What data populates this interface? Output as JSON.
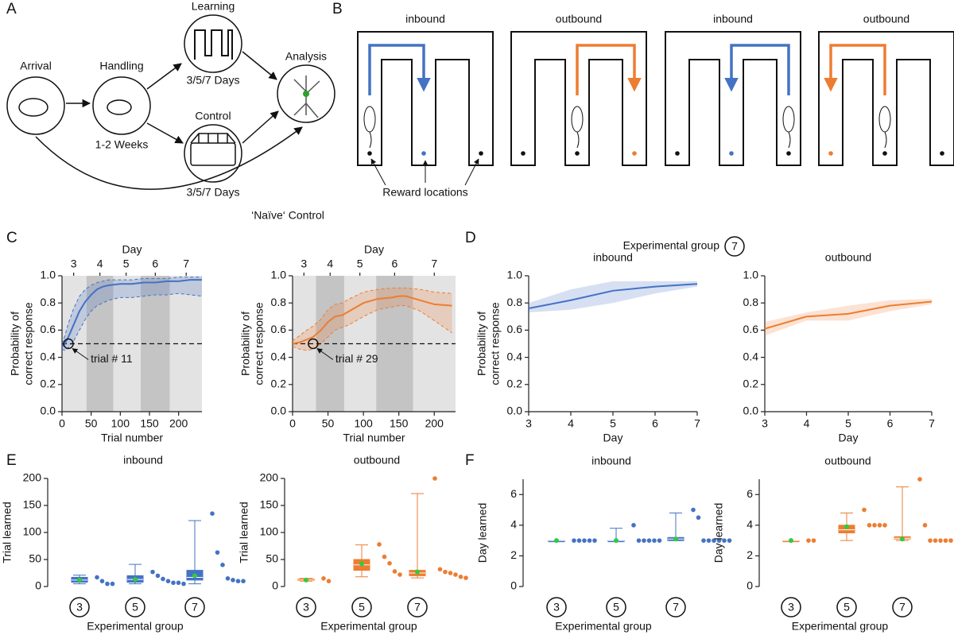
{
  "panel_labels": [
    "A",
    "B",
    "C",
    "D",
    "E",
    "F"
  ],
  "panel_a": {
    "stages": [
      "Arrival",
      "Handling",
      "Learning",
      "Control",
      "Analysis"
    ],
    "handling_duration": "1-2 Weeks",
    "learning_duration": "3/5/7 Days",
    "control_duration": "3/5/7 Days",
    "naive_control": "‘Naïve‘ Control"
  },
  "panel_b": {
    "maze_titles": [
      "inbound",
      "outbound",
      "inbound",
      "outbound"
    ],
    "reward_label": "Reward locations"
  },
  "panel_d": {
    "header": "Experimental group",
    "group": "7"
  },
  "chart_data": [
    {
      "type": "line",
      "color": "#4472c4",
      "x": [
        0,
        5,
        11,
        20,
        30,
        40,
        50,
        60,
        70,
        80,
        100,
        120,
        140,
        160,
        180,
        200,
        220,
        240
      ],
      "values": [
        0.48,
        0.5,
        0.55,
        0.64,
        0.74,
        0.81,
        0.86,
        0.9,
        0.92,
        0.93,
        0.94,
        0.94,
        0.95,
        0.95,
        0.96,
        0.96,
        0.97,
        0.97
      ],
      "upper": [
        0.5,
        0.56,
        0.65,
        0.76,
        0.85,
        0.9,
        0.93,
        0.95,
        0.96,
        0.97,
        0.97,
        0.97,
        0.98,
        0.98,
        0.98,
        0.99,
        0.99,
        0.99
      ],
      "lower": [
        0.46,
        0.45,
        0.47,
        0.52,
        0.6,
        0.68,
        0.74,
        0.78,
        0.8,
        0.82,
        0.84,
        0.84,
        0.85,
        0.86,
        0.86,
        0.87,
        0.86,
        0.85
      ],
      "xlim": [
        0,
        240
      ],
      "xticks": [
        0,
        50,
        100,
        150,
        200
      ],
      "ylim": [
        0,
        1
      ],
      "yticks": [
        {
          "value": 0,
          "label": "0.0"
        },
        {
          "value": 0.2,
          "label": "0.2"
        },
        {
          "value": 0.4,
          "label": "0.4"
        },
        {
          "value": 0.6,
          "label": "0.6"
        },
        {
          "value": 0.8,
          "label": "0.8"
        },
        {
          "value": 1,
          "label": "1.0"
        }
      ],
      "xlabel": "Trial number",
      "ylabel": [
        "Probability of",
        "correct response"
      ],
      "x2label": "Day",
      "x2ticks": [
        {
          "value": 20,
          "label": "3"
        },
        {
          "value": 65,
          "label": "4"
        },
        {
          "value": 110,
          "label": "5"
        },
        {
          "value": 160,
          "label": "6"
        },
        {
          "value": 213,
          "label": "7"
        }
      ],
      "bands": [
        {
          "from": 0,
          "to": 42,
          "color": "#e3e3e3"
        },
        {
          "from": 42,
          "to": 88,
          "color": "#c4c4c4"
        },
        {
          "from": 88,
          "to": 135,
          "color": "#e3e3e3"
        },
        {
          "from": 135,
          "to": 185,
          "color": "#c4c4c4"
        },
        {
          "from": 185,
          "to": 240,
          "color": "#e3e3e3"
        }
      ],
      "threshold": 0.5,
      "annotation": {
        "x": 11,
        "y": 0.5,
        "text": "trial # 11"
      }
    },
    {
      "type": "line",
      "color": "#ed7d31",
      "x": [
        0,
        10,
        20,
        29,
        40,
        50,
        60,
        70,
        80,
        100,
        120,
        140,
        150,
        160,
        180,
        200,
        225
      ],
      "values": [
        0.5,
        0.51,
        0.53,
        0.55,
        0.6,
        0.66,
        0.7,
        0.71,
        0.74,
        0.8,
        0.83,
        0.84,
        0.85,
        0.85,
        0.82,
        0.79,
        0.78
      ],
      "upper": [
        0.52,
        0.56,
        0.6,
        0.63,
        0.68,
        0.75,
        0.79,
        0.8,
        0.83,
        0.88,
        0.9,
        0.91,
        0.91,
        0.91,
        0.9,
        0.88,
        0.87
      ],
      "lower": [
        0.48,
        0.46,
        0.45,
        0.46,
        0.5,
        0.55,
        0.6,
        0.62,
        0.64,
        0.7,
        0.75,
        0.77,
        0.78,
        0.78,
        0.74,
        0.67,
        0.58
      ],
      "xlim": [
        0,
        230
      ],
      "xticks": [
        0,
        50,
        100,
        150,
        200
      ],
      "ylim": [
        0,
        1
      ],
      "yticks": [
        {
          "value": 0,
          "label": "0.0"
        },
        {
          "value": 0.2,
          "label": "0.2"
        },
        {
          "value": 0.4,
          "label": "0.4"
        },
        {
          "value": 0.6,
          "label": "0.6"
        },
        {
          "value": 0.8,
          "label": "0.8"
        },
        {
          "value": 1,
          "label": "1.0"
        }
      ],
      "xlabel": "Trial number",
      "ylabel": [
        "Probability of",
        "correct response"
      ],
      "x2label": "Day",
      "x2ticks": [
        {
          "value": 16,
          "label": "3"
        },
        {
          "value": 53,
          "label": "4"
        },
        {
          "value": 95,
          "label": "5"
        },
        {
          "value": 144,
          "label": "6"
        },
        {
          "value": 200,
          "label": "7"
        }
      ],
      "bands": [
        {
          "from": 0,
          "to": 33,
          "color": "#e3e3e3"
        },
        {
          "from": 33,
          "to": 73,
          "color": "#c4c4c4"
        },
        {
          "from": 73,
          "to": 118,
          "color": "#e3e3e3"
        },
        {
          "from": 118,
          "to": 170,
          "color": "#c4c4c4"
        },
        {
          "from": 170,
          "to": 230,
          "color": "#e3e3e3"
        }
      ],
      "threshold": 0.5,
      "annotation": {
        "x": 29,
        "y": 0.5,
        "text": "trial # 29"
      }
    },
    {
      "type": "line",
      "title": "inbound",
      "color": "#4472c4",
      "x": [
        3,
        4,
        5,
        6,
        7
      ],
      "values": [
        0.76,
        0.82,
        0.89,
        0.92,
        0.94
      ],
      "upper": [
        0.8,
        0.9,
        0.96,
        0.96,
        0.96
      ],
      "lower": [
        0.73,
        0.75,
        0.8,
        0.87,
        0.92
      ],
      "xlim": [
        3,
        7
      ],
      "xticks": [
        3,
        4,
        5,
        6,
        7
      ],
      "ylim": [
        0,
        1
      ],
      "yticks": [
        {
          "value": 0,
          "label": "0.0"
        },
        {
          "value": 0.2,
          "label": "0.2"
        },
        {
          "value": 0.4,
          "label": "0.4"
        },
        {
          "value": 0.6,
          "label": "0.6"
        },
        {
          "value": 0.8,
          "label": "0.8"
        },
        {
          "value": 1,
          "label": "1.0"
        }
      ],
      "xlabel": "Day",
      "ylabel": [
        "Probability of",
        "correct response"
      ]
    },
    {
      "type": "line",
      "title": "outbound",
      "color": "#ed7d31",
      "x": [
        3,
        4,
        5,
        6,
        7
      ],
      "values": [
        0.61,
        0.7,
        0.72,
        0.78,
        0.81
      ],
      "upper": [
        0.66,
        0.73,
        0.78,
        0.82,
        0.83
      ],
      "lower": [
        0.56,
        0.67,
        0.67,
        0.74,
        0.79
      ],
      "xlim": [
        3,
        7
      ],
      "xticks": [
        3,
        4,
        5,
        6,
        7
      ],
      "ylim": [
        0,
        1
      ],
      "yticks": [
        {
          "value": 0,
          "label": "0.0"
        },
        {
          "value": 0.2,
          "label": "0.2"
        },
        {
          "value": 0.4,
          "label": "0.4"
        },
        {
          "value": 0.6,
          "label": "0.6"
        },
        {
          "value": 0.8,
          "label": "0.8"
        },
        {
          "value": 1,
          "label": "1.0"
        }
      ],
      "xlabel": "Day"
    },
    {
      "type": "box",
      "title": "inbound",
      "color": "#4472c4",
      "ylim": [
        0,
        200
      ],
      "yticks": [
        0,
        50,
        100,
        150,
        200
      ],
      "ylabel": "Trial learned",
      "xlabel": "Experimental group",
      "groups": [
        "3",
        "5",
        "7"
      ],
      "boxes": [
        {
          "whislo": 5,
          "q1": 8,
          "med": 12,
          "q3": 17,
          "whishi": 21,
          "mean": 12,
          "points": [
            17,
            10,
            5,
            5
          ]
        },
        {
          "whislo": 5,
          "q1": 8,
          "med": 13,
          "q3": 20,
          "whishi": 41,
          "mean": 13,
          "points": [
            27,
            20,
            14,
            10,
            7,
            7,
            5
          ]
        },
        {
          "whislo": 5,
          "q1": 12,
          "med": 17,
          "q3": 30,
          "whishi": 122,
          "mean": 20,
          "points": [
            135,
            63,
            40,
            15,
            12,
            10,
            10
          ]
        }
      ]
    },
    {
      "type": "box",
      "title": "outbound",
      "color": "#ed7d31",
      "ylim": [
        0,
        200
      ],
      "yticks": [
        0,
        50,
        100,
        150,
        200
      ],
      "ylabel": "Trial learned",
      "xlabel": "Experimental group",
      "groups": [
        "3",
        "5",
        "7"
      ],
      "boxes": [
        {
          "whislo": 10,
          "q1": 11,
          "med": 12,
          "q3": 14,
          "whishi": 15,
          "mean": 12,
          "points": [
            15,
            10
          ]
        },
        {
          "whislo": 18,
          "q1": 30,
          "med": 40,
          "q3": 50,
          "whishi": 77,
          "mean": 42,
          "points": [
            78,
            55,
            43,
            28,
            22
          ]
        },
        {
          "whislo": 16,
          "q1": 20,
          "med": 25,
          "q3": 30,
          "whishi": 172,
          "mean": 27,
          "points": [
            200,
            32,
            27,
            25,
            22,
            18,
            16
          ]
        }
      ]
    },
    {
      "type": "box",
      "title": "inbound",
      "color": "#4472c4",
      "ylim": [
        0,
        7
      ],
      "yticks": [
        0,
        2,
        4,
        6
      ],
      "ylabel": "Day learned",
      "xlabel": "Experimental group",
      "groups": [
        "3",
        "5",
        "7"
      ],
      "boxes": [
        {
          "whislo": 3,
          "q1": 3,
          "med": 3,
          "q3": 3,
          "whishi": 3,
          "mean": 3,
          "points": [
            3,
            3,
            3,
            3,
            3
          ]
        },
        {
          "whislo": 3,
          "q1": 3,
          "med": 3,
          "q3": 3,
          "whishi": 3.8,
          "mean": 3,
          "points": [
            4,
            3,
            3,
            3,
            3,
            3
          ]
        },
        {
          "whislo": 3,
          "q1": 3,
          "med": 3.1,
          "q3": 3.2,
          "whishi": 4.8,
          "mean": 3.1,
          "points": [
            5,
            4.5,
            3,
            3,
            3,
            3,
            3,
            3
          ]
        }
      ]
    },
    {
      "type": "box",
      "title": "outbound",
      "color": "#ed7d31",
      "ylim": [
        0,
        7
      ],
      "yticks": [
        0,
        2,
        4,
        6
      ],
      "ylabel": "Day learned",
      "xlabel": "Experimental group",
      "groups": [
        "3",
        "5",
        "7"
      ],
      "boxes": [
        {
          "whislo": 3,
          "q1": 3,
          "med": 3,
          "q3": 3,
          "whishi": 3,
          "mean": 3,
          "points": [
            3,
            3
          ]
        },
        {
          "whislo": 3,
          "q1": 3.5,
          "med": 3.7,
          "q3": 4,
          "whishi": 4.8,
          "mean": 3.9,
          "points": [
            5,
            4,
            4,
            4,
            4
          ]
        },
        {
          "whislo": 3,
          "q1": 3.1,
          "med": 3.15,
          "q3": 3.25,
          "whishi": 6.5,
          "mean": 3.1,
          "points": [
            7,
            4,
            3,
            3,
            3,
            3,
            3
          ]
        }
      ]
    }
  ]
}
